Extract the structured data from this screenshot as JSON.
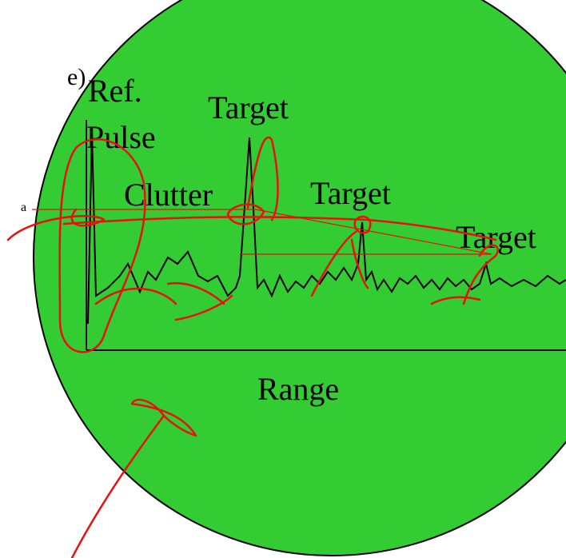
{
  "labels": {
    "corner_fragment": "e)",
    "side_fragment": "a",
    "ref_line1": "Ref.",
    "ref_line2": "Pulse",
    "clutter": "Clutter",
    "targets": [
      "Target",
      "Target",
      "Target"
    ],
    "x_axis": "Range"
  }
}
